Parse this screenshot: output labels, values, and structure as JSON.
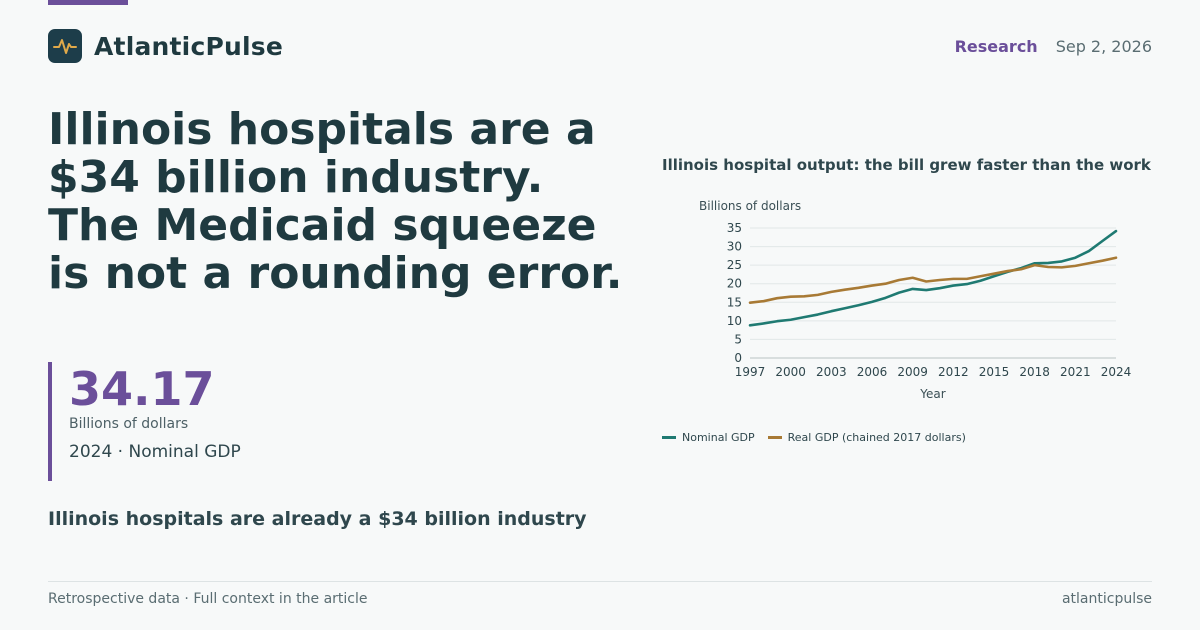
{
  "brand": {
    "name": "AtlanticPulse",
    "icon": "pulse-icon"
  },
  "header": {
    "section": "Research",
    "date": "Sep 2, 2026"
  },
  "headline": "Illinois hospitals are a $34 billion industry. The Medicaid squeeze is not a rounding error.",
  "stat": {
    "value": "34.17",
    "unit": "Billions of dollars",
    "description": "2024 · Nominal GDP"
  },
  "subhead": "Illinois hospitals are already a $34 billion industry",
  "footer": {
    "note": "Retrospective data · Full context in the article",
    "site": "atlanticpulse"
  },
  "colors": {
    "accent": "#6b4f9a",
    "nominal": "#1f7a72",
    "real": "#a87a35",
    "text": "#1f3a40"
  },
  "chart_data": {
    "type": "line",
    "title": "Illinois hospital output: the bill grew faster than the work",
    "ylabel": "Billions of dollars",
    "xlabel": "Year",
    "xlim": [
      1997,
      2024
    ],
    "ylim": [
      0,
      35
    ],
    "xticks": [
      "1997",
      "2000",
      "2003",
      "2006",
      "2009",
      "2012",
      "2015",
      "2018",
      "2021",
      "2024"
    ],
    "yticks": [
      "0",
      "5",
      "10",
      "15",
      "20",
      "25",
      "30",
      "35"
    ],
    "grid": true,
    "legend_position": "bottom-left",
    "x": [
      1997,
      1998,
      1999,
      2000,
      2001,
      2002,
      2003,
      2004,
      2005,
      2006,
      2007,
      2008,
      2009,
      2010,
      2011,
      2012,
      2013,
      2014,
      2015,
      2016,
      2017,
      2018,
      2019,
      2020,
      2021,
      2022,
      2023,
      2024
    ],
    "series": [
      {
        "name": "Nominal GDP",
        "color": "#1f7a72",
        "values": [
          8.8,
          9.3,
          9.9,
          10.3,
          11.0,
          11.7,
          12.6,
          13.4,
          14.2,
          15.1,
          16.2,
          17.6,
          18.6,
          18.3,
          18.8,
          19.5,
          19.9,
          20.8,
          22.0,
          23.2,
          24.2,
          25.5,
          25.6,
          26.0,
          27.0,
          28.8,
          31.5,
          34.17
        ]
      },
      {
        "name": "Real GDP (chained 2017 dollars)",
        "color": "#a87a35",
        "values": [
          14.9,
          15.3,
          16.1,
          16.5,
          16.6,
          17.0,
          17.8,
          18.4,
          18.9,
          19.5,
          20.0,
          21.0,
          21.6,
          20.6,
          21.0,
          21.3,
          21.3,
          22.0,
          22.7,
          23.4,
          23.9,
          25.0,
          24.5,
          24.4,
          24.8,
          25.5,
          26.2,
          27.0
        ]
      }
    ]
  }
}
